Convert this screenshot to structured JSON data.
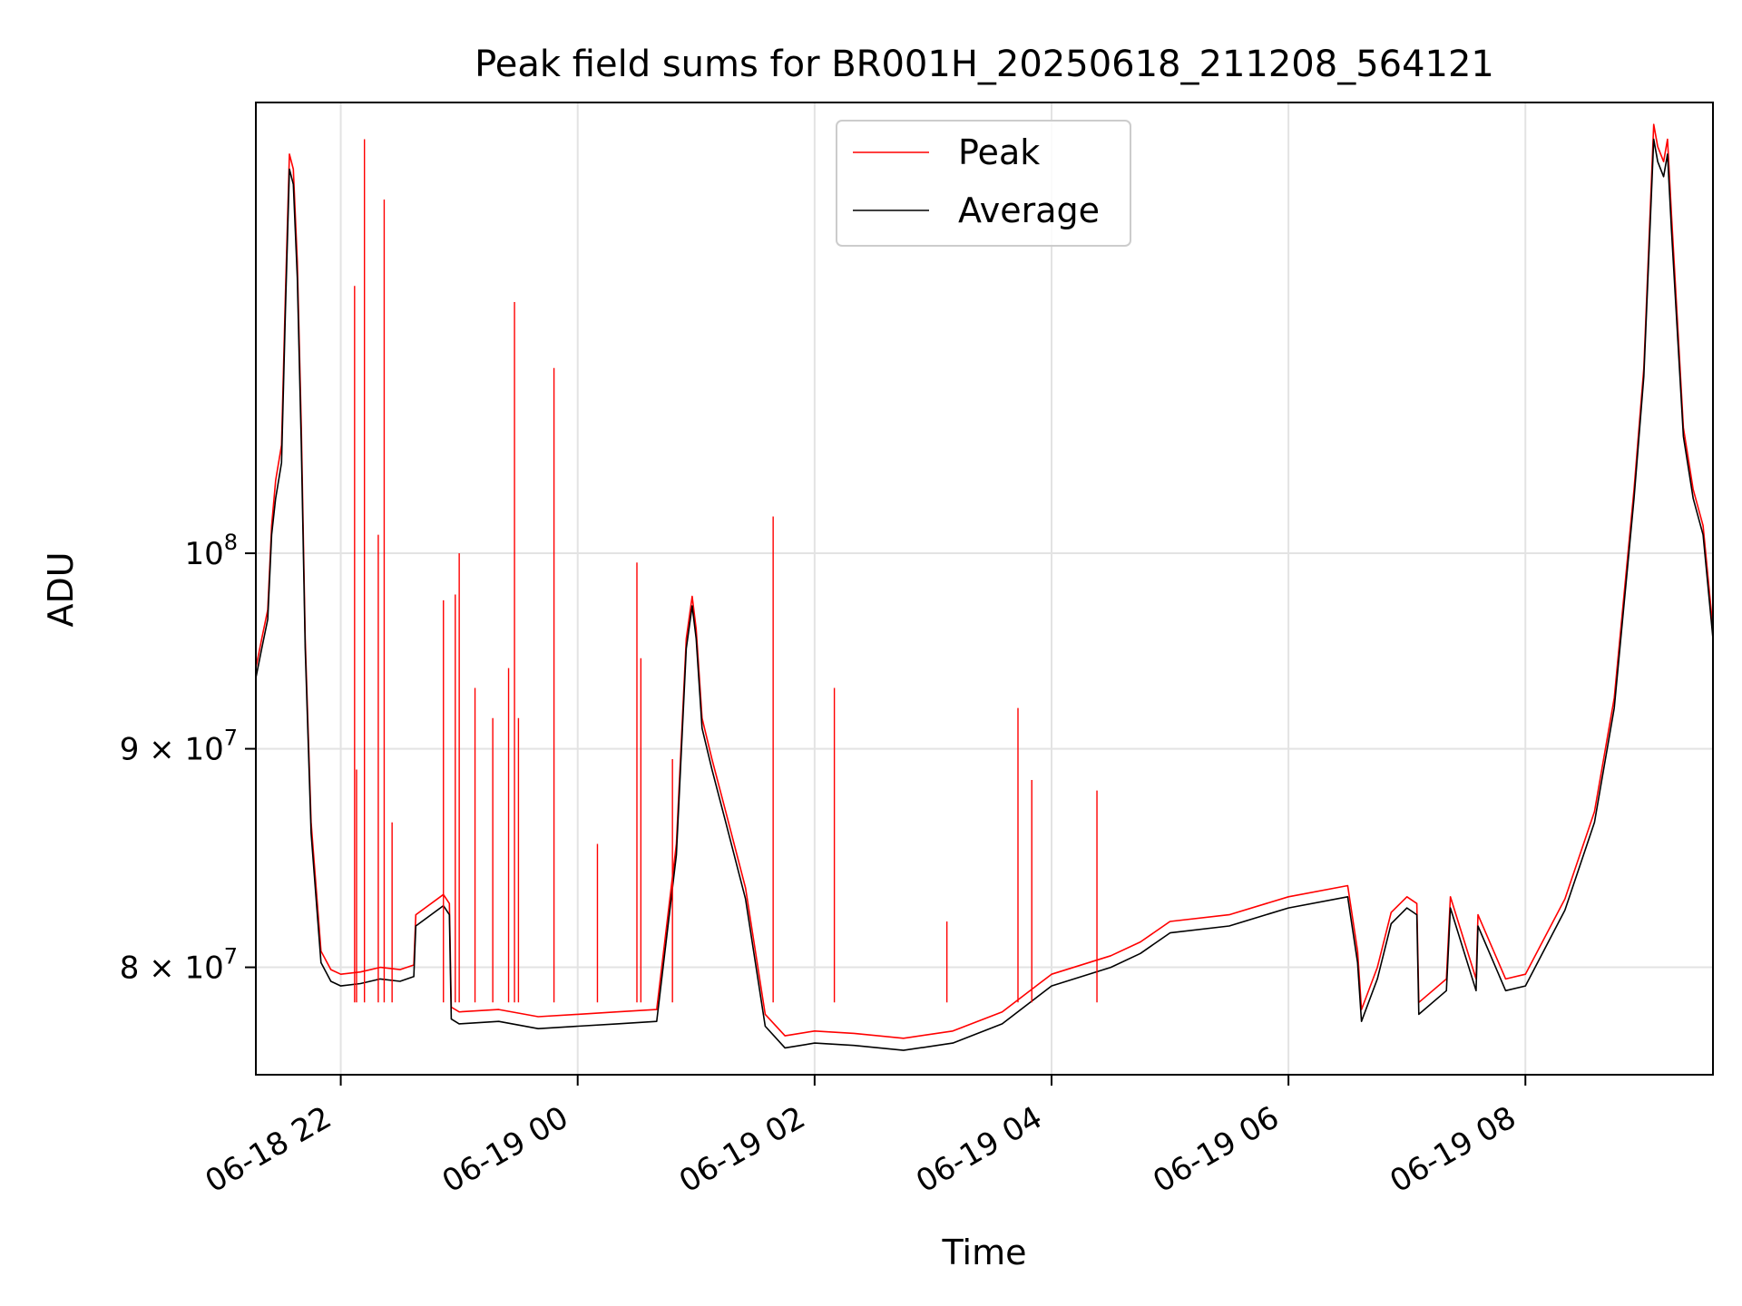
{
  "chart_data": {
    "type": "line",
    "title": "Peak field sums for BR001H_20250618_211208_564121",
    "xlabel": "Time",
    "ylabel": "ADU",
    "yscale": "log",
    "xlim": [
      "2025-06-18 21:17",
      "2025-06-19 09:35"
    ],
    "ylim": [
      75500000,
      127500000
    ],
    "grid": true,
    "legend_position": "top-center",
    "x_ticks": [
      {
        "value": "2025-06-18 22:00",
        "label": "06-18 22"
      },
      {
        "value": "2025-06-19 00:00",
        "label": "06-19 00"
      },
      {
        "value": "2025-06-19 02:00",
        "label": "06-19 02"
      },
      {
        "value": "2025-06-19 04:00",
        "label": "06-19 04"
      },
      {
        "value": "2025-06-19 06:00",
        "label": "06-19 06"
      },
      {
        "value": "2025-06-19 08:00",
        "label": "06-19 08"
      }
    ],
    "y_ticks": [
      {
        "value": 80000000,
        "base": "8 × 10",
        "exp": "7"
      },
      {
        "value": 90000000,
        "base": "9 × 10",
        "exp": "7"
      },
      {
        "value": 100000000,
        "base": "10",
        "exp": "8"
      }
    ],
    "series": [
      {
        "name": "Average",
        "color": "#000000",
        "x": [
          "2025-06-18 21:17",
          "2025-06-18 21:20",
          "2025-06-18 21:23",
          "2025-06-18 21:25",
          "2025-06-18 21:27",
          "2025-06-18 21:30",
          "2025-06-18 21:32",
          "2025-06-18 21:34",
          "2025-06-18 21:36",
          "2025-06-18 21:38",
          "2025-06-18 21:40",
          "2025-06-18 21:42",
          "2025-06-18 21:45",
          "2025-06-18 21:50",
          "2025-06-18 21:55",
          "2025-06-18 22:00",
          "2025-06-18 22:10",
          "2025-06-18 22:20",
          "2025-06-18 22:30",
          "2025-06-18 22:37",
          "2025-06-18 22:38",
          "2025-06-18 22:52",
          "2025-06-18 22:55",
          "2025-06-18 22:56",
          "2025-06-18 23:00",
          "2025-06-18 23:20",
          "2025-06-18 23:40",
          "2025-06-19 00:00",
          "2025-06-19 00:20",
          "2025-06-19 00:40",
          "2025-06-19 00:50",
          "2025-06-19 00:55",
          "2025-06-19 00:58",
          "2025-06-19 01:00",
          "2025-06-19 01:03",
          "2025-06-19 01:08",
          "2025-06-19 01:15",
          "2025-06-19 01:25",
          "2025-06-19 01:35",
          "2025-06-19 01:45",
          "2025-06-19 02:00",
          "2025-06-19 02:20",
          "2025-06-19 02:45",
          "2025-06-19 03:10",
          "2025-06-19 03:35",
          "2025-06-19 04:00",
          "2025-06-19 04:30",
          "2025-06-19 04:45",
          "2025-06-19 05:00",
          "2025-06-19 05:30",
          "2025-06-19 06:00",
          "2025-06-19 06:30",
          "2025-06-19 06:35",
          "2025-06-19 06:37",
          "2025-06-19 06:45",
          "2025-06-19 06:52",
          "2025-06-19 07:00",
          "2025-06-19 07:05",
          "2025-06-19 07:06",
          "2025-06-19 07:20",
          "2025-06-19 07:22",
          "2025-06-19 07:35",
          "2025-06-19 07:36",
          "2025-06-19 07:50",
          "2025-06-19 08:00",
          "2025-06-19 08:20",
          "2025-06-19 08:35",
          "2025-06-19 08:45",
          "2025-06-19 08:55",
          "2025-06-19 09:00",
          "2025-06-19 09:05",
          "2025-06-19 09:07",
          "2025-06-19 09:10",
          "2025-06-19 09:12",
          "2025-06-19 09:14",
          "2025-06-19 09:20",
          "2025-06-19 09:25",
          "2025-06-19 09:30",
          "2025-06-19 09:35"
        ],
        "y": [
          93500000,
          95000000,
          96500000,
          101000000,
          103000000,
          105000000,
          114000000,
          123000000,
          122000000,
          116000000,
          106000000,
          95000000,
          86000000,
          80200000,
          79400000,
          79200000,
          79300000,
          79500000,
          79400000,
          79600000,
          81800000,
          82700000,
          82300000,
          77800000,
          77600000,
          77700000,
          77400000,
          77500000,
          77600000,
          77700000,
          85000000,
          95000000,
          97200000,
          95500000,
          91000000,
          89000000,
          86500000,
          83000000,
          77500000,
          76600000,
          76800000,
          76700000,
          76500000,
          76800000,
          77600000,
          79200000,
          80000000,
          80600000,
          81500000,
          81800000,
          82600000,
          83100000,
          80200000,
          77700000,
          79500000,
          81900000,
          82600000,
          82300000,
          78000000,
          79000000,
          82600000,
          79000000,
          81800000,
          79000000,
          79200000,
          82500000,
          86500000,
          92000000,
          103000000,
          110000000,
          125000000,
          123500000,
          122500000,
          124000000,
          119000000,
          106500000,
          103000000,
          101000000,
          95500000
        ]
      },
      {
        "name": "Peak",
        "color": "#ff0000",
        "x": [
          "2025-06-18 21:17",
          "2025-06-18 21:20",
          "2025-06-18 21:23",
          "2025-06-18 21:25",
          "2025-06-18 21:27",
          "2025-06-18 21:30",
          "2025-06-18 21:32",
          "2025-06-18 21:34",
          "2025-06-18 21:36",
          "2025-06-18 21:38",
          "2025-06-18 21:40",
          "2025-06-18 21:42",
          "2025-06-18 21:45",
          "2025-06-18 21:50",
          "2025-06-18 21:55",
          "2025-06-18 22:00",
          "2025-06-18 22:10",
          "2025-06-18 22:20",
          "2025-06-18 22:30",
          "2025-06-18 22:37",
          "2025-06-18 22:38",
          "2025-06-18 22:52",
          "2025-06-18 22:55",
          "2025-06-18 22:56",
          "2025-06-18 23:00",
          "2025-06-18 23:20",
          "2025-06-18 23:40",
          "2025-06-19 00:00",
          "2025-06-19 00:20",
          "2025-06-19 00:40",
          "2025-06-19 00:50",
          "2025-06-19 00:55",
          "2025-06-19 00:58",
          "2025-06-19 01:00",
          "2025-06-19 01:03",
          "2025-06-19 01:08",
          "2025-06-19 01:15",
          "2025-06-19 01:25",
          "2025-06-19 01:35",
          "2025-06-19 01:45",
          "2025-06-19 02:00",
          "2025-06-19 02:20",
          "2025-06-19 02:45",
          "2025-06-19 03:10",
          "2025-06-19 03:35",
          "2025-06-19 04:00",
          "2025-06-19 04:30",
          "2025-06-19 04:45",
          "2025-06-19 05:00",
          "2025-06-19 05:30",
          "2025-06-19 06:00",
          "2025-06-19 06:30",
          "2025-06-19 06:35",
          "2025-06-19 06:37",
          "2025-06-19 06:45",
          "2025-06-19 06:52",
          "2025-06-19 07:00",
          "2025-06-19 07:05",
          "2025-06-19 07:06",
          "2025-06-19 07:20",
          "2025-06-19 07:22",
          "2025-06-19 07:35",
          "2025-06-19 07:36",
          "2025-06-19 07:50",
          "2025-06-19 08:00",
          "2025-06-19 08:20",
          "2025-06-19 08:35",
          "2025-06-19 08:45",
          "2025-06-19 08:55",
          "2025-06-19 09:00",
          "2025-06-19 09:05",
          "2025-06-19 09:07",
          "2025-06-19 09:10",
          "2025-06-19 09:12",
          "2025-06-19 09:14",
          "2025-06-19 09:20",
          "2025-06-19 09:25",
          "2025-06-19 09:30",
          "2025-06-19 09:35"
        ],
        "y": [
          94000000,
          95500000,
          97000000,
          101500000,
          104000000,
          106000000,
          115000000,
          124000000,
          123000000,
          117000000,
          107000000,
          95500000,
          86500000,
          80700000,
          79900000,
          79700000,
          79800000,
          80000000,
          79900000,
          80100000,
          82300000,
          83200000,
          82800000,
          78300000,
          78100000,
          78200000,
          77900000,
          78000000,
          78100000,
          78200000,
          85500000,
          95500000,
          97700000,
          96000000,
          91500000,
          89500000,
          87000000,
          83500000,
          78000000,
          77100000,
          77300000,
          77200000,
          77000000,
          77300000,
          78100000,
          79700000,
          80500000,
          81100000,
          82000000,
          82300000,
          83100000,
          83600000,
          80700000,
          78200000,
          80000000,
          82400000,
          83100000,
          82800000,
          78500000,
          79500000,
          83100000,
          79500000,
          82300000,
          79500000,
          79700000,
          83000000,
          87000000,
          92500000,
          103500000,
          110500000,
          126000000,
          124500000,
          123500000,
          125000000,
          120000000,
          107000000,
          103500000,
          101500000,
          96000000
        ]
      }
    ],
    "spikes": {
      "series": "Peak",
      "color": "#ff0000",
      "points": [
        {
          "x": "2025-06-18 22:07",
          "y": 115500000
        },
        {
          "x": "2025-06-18 22:08",
          "y": 89000000
        },
        {
          "x": "2025-06-18 22:12",
          "y": 125000000
        },
        {
          "x": "2025-06-18 22:19",
          "y": 101000000
        },
        {
          "x": "2025-06-18 22:22",
          "y": 121000000
        },
        {
          "x": "2025-06-18 22:26",
          "y": 86500000
        },
        {
          "x": "2025-06-18 22:52",
          "y": 97500000
        },
        {
          "x": "2025-06-18 22:58",
          "y": 97800000
        },
        {
          "x": "2025-06-18 23:00",
          "y": 100000000
        },
        {
          "x": "2025-06-18 23:08",
          "y": 93000000
        },
        {
          "x": "2025-06-18 23:17",
          "y": 91500000
        },
        {
          "x": "2025-06-18 23:25",
          "y": 94000000
        },
        {
          "x": "2025-06-18 23:28",
          "y": 114500000
        },
        {
          "x": "2025-06-18 23:30",
          "y": 91500000
        },
        {
          "x": "2025-06-18 23:48",
          "y": 110500000
        },
        {
          "x": "2025-06-19 00:10",
          "y": 85500000
        },
        {
          "x": "2025-06-19 00:30",
          "y": 99500000
        },
        {
          "x": "2025-06-19 00:32",
          "y": 94500000
        },
        {
          "x": "2025-06-19 00:48",
          "y": 89500000
        },
        {
          "x": "2025-06-19 01:39",
          "y": 102000000
        },
        {
          "x": "2025-06-19 02:10",
          "y": 93000000
        },
        {
          "x": "2025-06-19 03:07",
          "y": 82000000
        },
        {
          "x": "2025-06-19 03:43",
          "y": 92000000
        },
        {
          "x": "2025-06-19 03:50",
          "y": 88500000
        },
        {
          "x": "2025-06-19 04:23",
          "y": 88000000
        }
      ]
    }
  }
}
